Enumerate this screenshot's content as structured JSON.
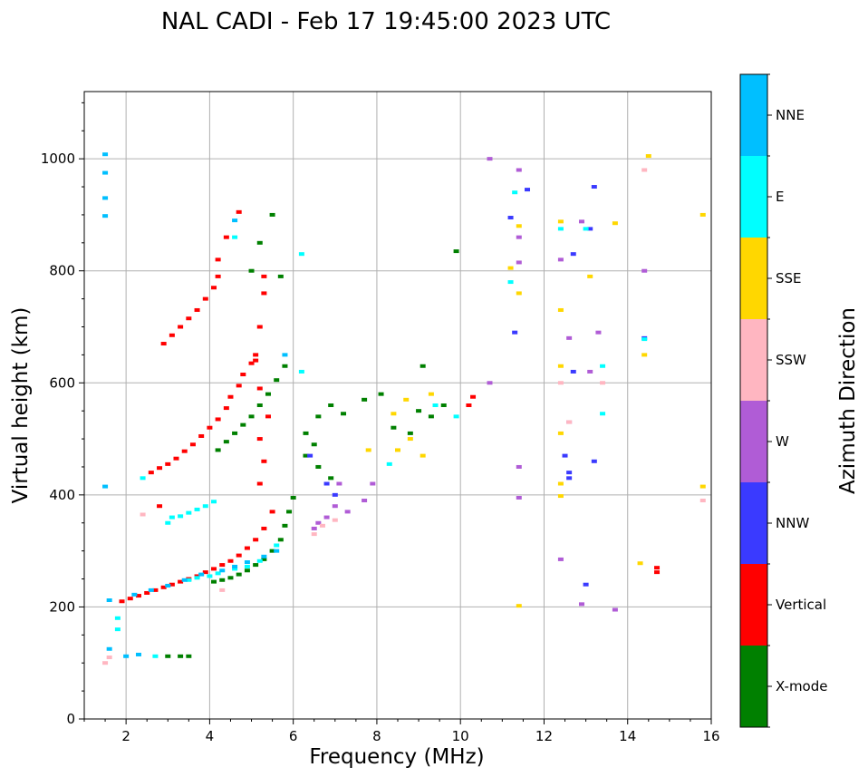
{
  "chart_data": {
    "type": "scatter",
    "title": "NAL CADI - Feb 17 19:45:00 2023 UTC",
    "xlabel": "Frequency (MHz)",
    "ylabel": "Virtual height (km)",
    "xlim": [
      1,
      16
    ],
    "ylim": [
      0,
      1120
    ],
    "xticks": [
      2,
      4,
      6,
      8,
      10,
      12,
      14,
      16
    ],
    "yticks": [
      0,
      200,
      400,
      600,
      800,
      1000
    ],
    "grid": true,
    "colorbar": {
      "label": "Azimuth Direction",
      "categories": [
        {
          "name": "X-mode",
          "color": "#008000"
        },
        {
          "name": "Vertical",
          "color": "#ff0000"
        },
        {
          "name": "NNW",
          "color": "#3a3aff"
        },
        {
          "name": "W",
          "color": "#b05cd6"
        },
        {
          "name": "SSW",
          "color": "#ffb6c1"
        },
        {
          "name": "SSE",
          "color": "#ffd700"
        },
        {
          "name": "E",
          "color": "#00ffff"
        },
        {
          "name": "NNE",
          "color": "#00bfff"
        }
      ]
    },
    "series": [
      {
        "name": "Vertical",
        "color": "#ff0000",
        "points": [
          [
            1.9,
            210
          ],
          [
            2.1,
            215
          ],
          [
            2.3,
            220
          ],
          [
            2.5,
            225
          ],
          [
            2.7,
            230
          ],
          [
            2.9,
            235
          ],
          [
            3.1,
            240
          ],
          [
            3.3,
            245
          ],
          [
            3.5,
            250
          ],
          [
            3.7,
            255
          ],
          [
            3.9,
            262
          ],
          [
            4.1,
            268
          ],
          [
            4.3,
            275
          ],
          [
            4.5,
            282
          ],
          [
            4.7,
            292
          ],
          [
            4.9,
            305
          ],
          [
            5.1,
            320
          ],
          [
            5.3,
            340
          ],
          [
            5.5,
            370
          ],
          [
            2.6,
            440
          ],
          [
            2.8,
            448
          ],
          [
            3.0,
            455
          ],
          [
            3.2,
            465
          ],
          [
            3.4,
            478
          ],
          [
            3.6,
            490
          ],
          [
            3.8,
            505
          ],
          [
            4.0,
            520
          ],
          [
            4.2,
            535
          ],
          [
            4.4,
            555
          ],
          [
            4.5,
            575
          ],
          [
            4.7,
            595
          ],
          [
            4.8,
            615
          ],
          [
            5.0,
            635
          ],
          [
            5.1,
            650
          ],
          [
            2.9,
            670
          ],
          [
            3.1,
            685
          ],
          [
            3.3,
            700
          ],
          [
            3.5,
            715
          ],
          [
            3.7,
            730
          ],
          [
            3.9,
            750
          ],
          [
            4.1,
            770
          ],
          [
            4.2,
            790
          ],
          [
            4.2,
            820
          ],
          [
            4.4,
            860
          ],
          [
            4.7,
            905
          ],
          [
            5.2,
            420
          ],
          [
            5.3,
            460
          ],
          [
            5.2,
            500
          ],
          [
            5.4,
            540
          ],
          [
            5.2,
            590
          ],
          [
            5.1,
            640
          ],
          [
            5.2,
            700
          ],
          [
            5.3,
            760
          ],
          [
            5.3,
            790
          ],
          [
            10.2,
            560
          ],
          [
            10.3,
            575
          ],
          [
            14.7,
            270
          ],
          [
            14.7,
            262
          ],
          [
            2.8,
            380
          ]
        ]
      },
      {
        "name": "X-mode",
        "color": "#008000",
        "points": [
          [
            4.1,
            245
          ],
          [
            4.3,
            248
          ],
          [
            4.5,
            252
          ],
          [
            4.7,
            258
          ],
          [
            4.9,
            265
          ],
          [
            5.1,
            275
          ],
          [
            5.3,
            285
          ],
          [
            5.5,
            300
          ],
          [
            5.7,
            320
          ],
          [
            5.8,
            345
          ],
          [
            5.9,
            370
          ],
          [
            6.0,
            395
          ],
          [
            4.2,
            480
          ],
          [
            4.4,
            495
          ],
          [
            4.6,
            510
          ],
          [
            4.8,
            525
          ],
          [
            5.0,
            540
          ],
          [
            5.2,
            560
          ],
          [
            5.4,
            580
          ],
          [
            5.6,
            605
          ],
          [
            5.8,
            630
          ],
          [
            5.0,
            800
          ],
          [
            5.2,
            850
          ],
          [
            5.5,
            900
          ],
          [
            5.7,
            790
          ],
          [
            6.3,
            510
          ],
          [
            6.6,
            540
          ],
          [
            6.9,
            560
          ],
          [
            7.2,
            545
          ],
          [
            7.7,
            570
          ],
          [
            8.1,
            580
          ],
          [
            8.4,
            520
          ],
          [
            8.8,
            510
          ],
          [
            9.0,
            550
          ],
          [
            9.3,
            540
          ],
          [
            9.6,
            560
          ],
          [
            9.9,
            835
          ],
          [
            9.1,
            630
          ],
          [
            3.0,
            112
          ],
          [
            3.3,
            112
          ],
          [
            3.5,
            112
          ],
          [
            6.3,
            470
          ],
          [
            6.6,
            450
          ],
          [
            6.9,
            430
          ],
          [
            6.5,
            490
          ]
        ]
      },
      {
        "name": "NNW",
        "color": "#3a3aff",
        "points": [
          [
            6.4,
            470
          ],
          [
            6.8,
            420
          ],
          [
            7.0,
            400
          ],
          [
            11.6,
            945
          ],
          [
            12.5,
            470
          ],
          [
            12.6,
            440
          ],
          [
            12.6,
            430
          ],
          [
            12.7,
            620
          ],
          [
            12.7,
            830
          ],
          [
            13.1,
            875
          ],
          [
            13.2,
            950
          ],
          [
            13.2,
            460
          ],
          [
            13.0,
            240
          ],
          [
            11.3,
            690
          ],
          [
            11.2,
            895
          ],
          [
            14.4,
            680
          ]
        ]
      },
      {
        "name": "W",
        "color": "#b05cd6",
        "points": [
          [
            6.6,
            350
          ],
          [
            6.8,
            360
          ],
          [
            7.0,
            380
          ],
          [
            7.3,
            370
          ],
          [
            7.7,
            390
          ],
          [
            7.9,
            420
          ],
          [
            6.5,
            340
          ],
          [
            7.1,
            420
          ],
          [
            10.7,
            1000
          ],
          [
            11.4,
            980
          ],
          [
            11.4,
            860
          ],
          [
            11.4,
            815
          ],
          [
            11.4,
            395
          ],
          [
            11.4,
            450
          ],
          [
            12.4,
            820
          ],
          [
            12.6,
            680
          ],
          [
            12.6,
            530
          ],
          [
            12.4,
            285
          ],
          [
            12.9,
            888
          ],
          [
            13.3,
            690
          ],
          [
            13.1,
            620
          ],
          [
            12.9,
            205
          ],
          [
            13.7,
            195
          ],
          [
            14.4,
            800
          ],
          [
            10.7,
            600
          ]
        ]
      },
      {
        "name": "SSW",
        "color": "#ffb6c1",
        "points": [
          [
            6.7,
            345
          ],
          [
            7.0,
            355
          ],
          [
            6.5,
            330
          ],
          [
            1.6,
            110
          ],
          [
            1.5,
            100
          ],
          [
            2.4,
            365
          ],
          [
            12.4,
            600
          ],
          [
            12.6,
            530
          ],
          [
            13.4,
            600
          ],
          [
            14.4,
            980
          ],
          [
            15.8,
            390
          ],
          [
            4.3,
            230
          ]
        ]
      },
      {
        "name": "SSE",
        "color": "#ffd700",
        "points": [
          [
            8.4,
            545
          ],
          [
            8.5,
            480
          ],
          [
            8.8,
            500
          ],
          [
            9.1,
            470
          ],
          [
            9.3,
            580
          ],
          [
            8.7,
            570
          ],
          [
            7.8,
            480
          ],
          [
            11.2,
            805
          ],
          [
            11.4,
            880
          ],
          [
            11.4,
            760
          ],
          [
            12.4,
            888
          ],
          [
            12.4,
            730
          ],
          [
            12.4,
            630
          ],
          [
            12.4,
            510
          ],
          [
            12.4,
            420
          ],
          [
            12.4,
            398
          ],
          [
            13.1,
            790
          ],
          [
            13.7,
            885
          ],
          [
            14.5,
            1005
          ],
          [
            14.4,
            650
          ],
          [
            14.3,
            278
          ],
          [
            15.8,
            900
          ],
          [
            15.8,
            415
          ],
          [
            11.4,
            202
          ]
        ]
      },
      {
        "name": "E",
        "color": "#00ffff",
        "points": [
          [
            3.1,
            360
          ],
          [
            3.3,
            362
          ],
          [
            3.5,
            368
          ],
          [
            3.7,
            374
          ],
          [
            3.9,
            380
          ],
          [
            4.1,
            388
          ],
          [
            3.0,
            350
          ],
          [
            3.5,
            248
          ],
          [
            3.7,
            252
          ],
          [
            4.0,
            255
          ],
          [
            4.2,
            260
          ],
          [
            4.6,
            268
          ],
          [
            4.9,
            272
          ],
          [
            5.2,
            282
          ],
          [
            5.6,
            310
          ],
          [
            2.4,
            430
          ],
          [
            6.2,
            830
          ],
          [
            6.2,
            620
          ],
          [
            9.4,
            560
          ],
          [
            9.9,
            540
          ],
          [
            11.3,
            940
          ],
          [
            11.2,
            780
          ],
          [
            12.4,
            875
          ],
          [
            13.0,
            875
          ],
          [
            13.4,
            630
          ],
          [
            13.4,
            545
          ],
          [
            14.4,
            678
          ],
          [
            8.3,
            455
          ],
          [
            1.8,
            180
          ],
          [
            1.8,
            160
          ],
          [
            2.7,
            112
          ],
          [
            4.6,
            860
          ]
        ]
      },
      {
        "name": "NNE",
        "color": "#00bfff",
        "points": [
          [
            1.5,
            1008
          ],
          [
            1.5,
            975
          ],
          [
            1.5,
            930
          ],
          [
            1.5,
            898
          ],
          [
            1.5,
            415
          ],
          [
            1.6,
            212
          ],
          [
            2.2,
            222
          ],
          [
            2.6,
            230
          ],
          [
            3.0,
            238
          ],
          [
            3.4,
            248
          ],
          [
            3.8,
            258
          ],
          [
            4.3,
            265
          ],
          [
            4.6,
            272
          ],
          [
            4.9,
            280
          ],
          [
            5.3,
            290
          ],
          [
            5.6,
            300
          ],
          [
            4.6,
            890
          ],
          [
            5.8,
            650
          ],
          [
            1.6,
            125
          ],
          [
            2.0,
            112
          ],
          [
            2.3,
            115
          ]
        ]
      }
    ]
  }
}
